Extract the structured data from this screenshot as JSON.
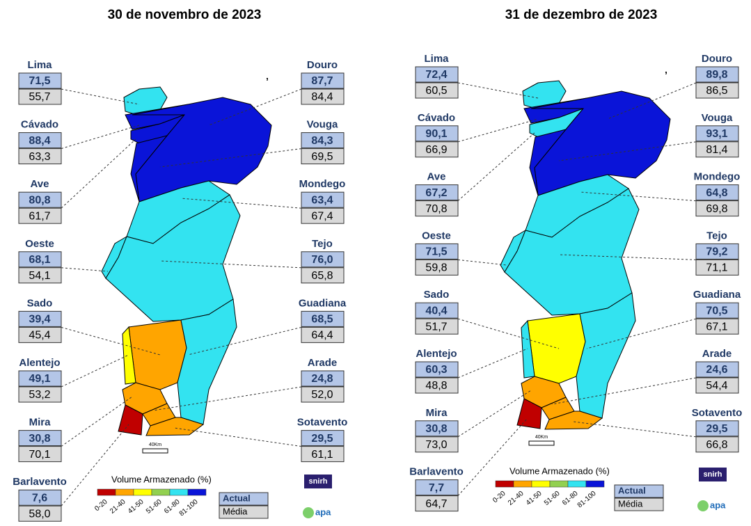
{
  "maps": [
    {
      "title": "30 de novembro de 2023",
      "basins": [
        {
          "name": "Lima",
          "actual": "71,5",
          "media": "55,7"
        },
        {
          "name": "Cávado",
          "actual": "88,4",
          "media": "63,3"
        },
        {
          "name": "Ave",
          "actual": "80,8",
          "media": "61,7"
        },
        {
          "name": "Oeste",
          "actual": "68,1",
          "media": "54,1"
        },
        {
          "name": "Sado",
          "actual": "39,4",
          "media": "45,4"
        },
        {
          "name": "Alentejo",
          "actual": "49,1",
          "media": "53,2"
        },
        {
          "name": "Mira",
          "actual": "30,8",
          "media": "70,1"
        },
        {
          "name": "Barlavento",
          "actual": "7,6",
          "media": "58,0"
        },
        {
          "name": "Douro",
          "actual": "87,7",
          "media": "84,4"
        },
        {
          "name": "Vouga",
          "actual": "84,3",
          "media": "69,5"
        },
        {
          "name": "Mondego",
          "actual": "63,4",
          "media": "67,4"
        },
        {
          "name": "Tejo",
          "actual": "76,0",
          "media": "65,8"
        },
        {
          "name": "Guadiana",
          "actual": "68,5",
          "media": "64,4"
        },
        {
          "name": "Arade",
          "actual": "24,8",
          "media": "52,0"
        },
        {
          "name": "Sotavento",
          "actual": "29,5",
          "media": "61,1"
        }
      ]
    },
    {
      "title": "31 de dezembro de 2023",
      "basins": [
        {
          "name": "Lima",
          "actual": "72,4",
          "media": "60,5"
        },
        {
          "name": "Cávado",
          "actual": "90,1",
          "media": "66,9"
        },
        {
          "name": "Ave",
          "actual": "67,2",
          "media": "70,8"
        },
        {
          "name": "Oeste",
          "actual": "71,5",
          "media": "59,8"
        },
        {
          "name": "Sado",
          "actual": "40,4",
          "media": "51,7"
        },
        {
          "name": "Alentejo",
          "actual": "60,3",
          "media": "48,8"
        },
        {
          "name": "Mira",
          "actual": "30,8",
          "media": "73,0"
        },
        {
          "name": "Barlavento",
          "actual": "7,7",
          "media": "64,7"
        },
        {
          "name": "Douro",
          "actual": "89,8",
          "media": "86,5"
        },
        {
          "name": "Vouga",
          "actual": "93,1",
          "media": "81,4"
        },
        {
          "name": "Mondego",
          "actual": "64,8",
          "media": "69,8"
        },
        {
          "name": "Tejo",
          "actual": "79,2",
          "media": "71,1"
        },
        {
          "name": "Guadiana",
          "actual": "70,5",
          "media": "67,1"
        },
        {
          "name": "Arade",
          "actual": "24,6",
          "media": "54,4"
        },
        {
          "name": "Sotavento",
          "actual": "29,5",
          "media": "66,8"
        }
      ]
    }
  ],
  "legend": {
    "title": "Volume Armazenado (%)",
    "classes": [
      {
        "label": "0-20",
        "color": "#c00000"
      },
      {
        "label": "21-40",
        "color": "#ffa500"
      },
      {
        "label": "41-50",
        "color": "#ffff00"
      },
      {
        "label": "51-60",
        "color": "#92d050"
      },
      {
        "label": "61-80",
        "color": "#33e3f0"
      },
      {
        "label": "81-100",
        "color": "#0a14d8"
      }
    ],
    "actual": "Actual",
    "media": "Média",
    "scale": "40Km",
    "logos": [
      "snirh",
      "apa"
    ]
  }
}
